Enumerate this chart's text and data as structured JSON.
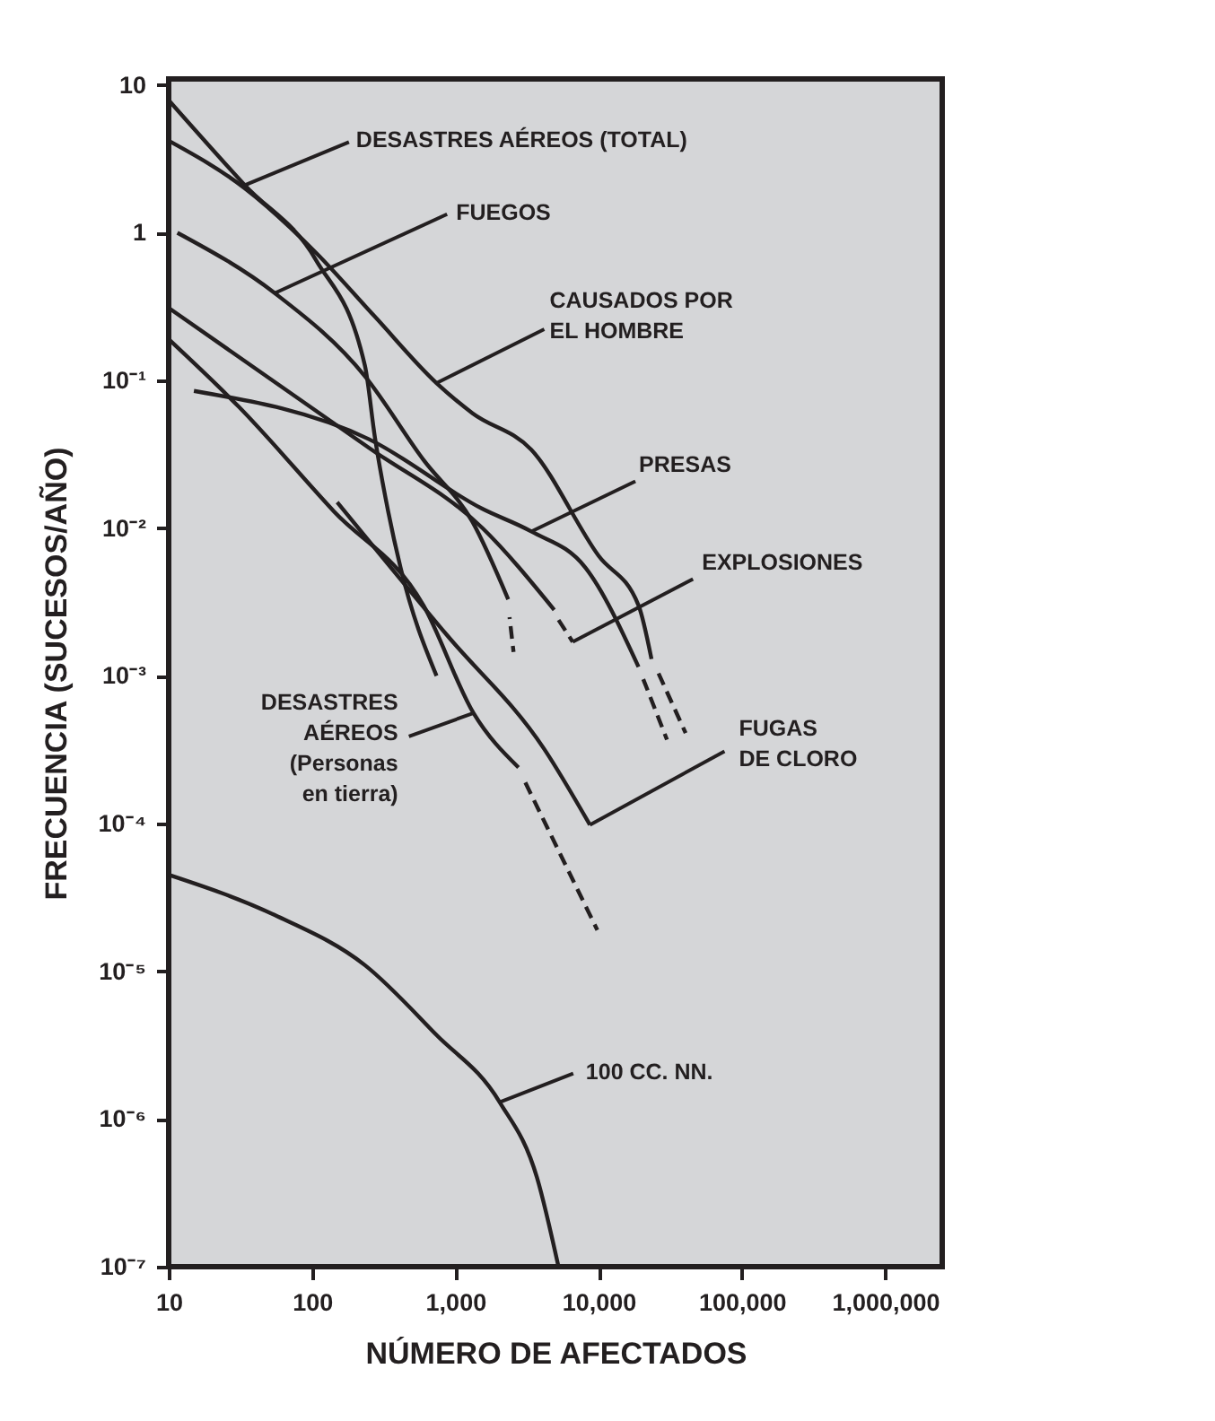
{
  "chart_data": {
    "type": "line",
    "log": "xy",
    "grid": false,
    "xlabel": "NÚMERO DE AFECTADOS",
    "ylabel": "FRECUENCIA (SUCESOS/AÑO)",
    "xlim": [
      10,
      2500000
    ],
    "ylim": [
      1e-07,
      11
    ],
    "xticks": [
      10,
      100,
      {
        "value": 1000,
        "label": "1,000"
      },
      {
        "value": 10000,
        "label": "10,000"
      },
      {
        "value": 100000,
        "label": "100,000"
      },
      {
        "value": 1000000,
        "label": "1,000,000"
      }
    ],
    "yticks": [
      {
        "value": 1e-07,
        "label": "10⁻⁷"
      },
      {
        "value": 1e-06,
        "label": "10⁻⁶"
      },
      {
        "value": 1e-05,
        "label": "10⁻⁵"
      },
      {
        "value": 0.0001,
        "label": "10⁻⁴"
      },
      {
        "value": 0.001,
        "label": "10⁻³"
      },
      {
        "value": 0.01,
        "label": "10⁻²"
      },
      {
        "value": 0.1,
        "label": "10⁻¹"
      },
      1,
      10
    ],
    "series": [
      {
        "color": "#231f20",
        "line_style": "solid",
        "x": [
          10,
          34,
          107,
          234,
          275,
          340,
          415,
          740
        ],
        "values": [
          7.9,
          2.1,
          0.65,
          0.126,
          0.041,
          0.013,
          0.0054,
          0.001
        ]
      },
      {
        "color": "#231f20",
        "line_style": "solid",
        "x": [
          10,
          34,
          107,
          275,
          740,
          1320,
          3390,
          10000,
          19000,
          23400
        ],
        "values": [
          4.2,
          2.0,
          0.73,
          0.27,
          0.096,
          0.06,
          0.034,
          0.0065,
          0.003,
          0.0013
        ]
      },
      {
        "color": "#231f20",
        "line_style": "dashed",
        "x": [
          25500,
          40500
        ],
        "values": [
          0.0011,
          0.00041
        ]
      },
      {
        "color": "#231f20",
        "line_style": "solid",
        "x": [
          15,
          250,
          1550,
          3390,
          8100,
          19000
        ],
        "values": [
          0.085,
          0.04,
          0.0135,
          0.0095,
          0.0054,
          0.00115
        ]
      },
      {
        "color": "#231f20",
        "line_style": "dashed",
        "x": [
          20500,
          30000
        ],
        "values": [
          0.00095,
          0.00037
        ]
      },
      {
        "color": "#231f20",
        "line_style": "solid",
        "x": [
          11.5,
          55,
          234,
          600,
          1320,
          2340
        ],
        "values": [
          1.0,
          0.39,
          0.107,
          0.029,
          0.011,
          0.0033
        ]
      },
      {
        "color": "#231f20",
        "line_style": "dashed",
        "x": [
          2390,
          2550
        ],
        "values": [
          0.0025,
          0.00145
        ]
      },
      {
        "color": "#231f20",
        "line_style": "solid",
        "x": [
          10,
          250,
          1550,
          4900
        ],
        "values": [
          0.31,
          0.035,
          0.01,
          0.0028
        ]
      },
      {
        "color": "#231f20",
        "line_style": "dashed",
        "x": [
          5100,
          6600
        ],
        "values": [
          0.0025,
          0.0017
        ]
      },
      {
        "color": "#231f20",
        "line_style": "solid",
        "x": [
          10,
          31,
          142,
          600,
          1340,
          2760
        ],
        "values": [
          0.19,
          0.066,
          0.013,
          0.003,
          0.00056,
          0.00024
        ]
      },
      {
        "color": "#231f20",
        "line_style": "dashed",
        "x": [
          3000,
          9800
        ],
        "values": [
          0.0002,
          1.9e-05
        ]
      },
      {
        "color": "#231f20",
        "line_style": "solid",
        "x": [
          150,
          870,
          4170,
          8700
        ],
        "values": [
          0.015,
          0.0019,
          0.00032,
          9.8e-05
        ]
      },
      {
        "color": "#231f20",
        "line_style": "solid",
        "x": [
          10,
          55,
          234,
          740,
          2040,
          3720,
          5250
        ],
        "values": [
          4.5e-05,
          2.4e-05,
          1.1e-05,
          3.7e-06,
          1.3e-06,
          4e-07,
          1e-07
        ]
      }
    ],
    "annotations": [
      {
        "text": "DESASTRES AÉREOS (TOTAL)",
        "x": 34,
        "y": 2.1
      },
      {
        "text": "FUEGOS",
        "x": 55,
        "y": 0.39
      },
      {
        "text": "CAUSADOS POR\nEL HOMBRE",
        "x": 740,
        "y": 0.096
      },
      {
        "text": "PRESAS",
        "x": 3390,
        "y": 0.0095
      },
      {
        "text": "EXPLOSIONES",
        "x": 6600,
        "y": 0.0017
      },
      {
        "text": "DESASTRES\nAÉREOS\n(Personas\nen tierra)",
        "x": 1340,
        "y": 0.00056
      },
      {
        "text": "FUGAS\nDE CLORO",
        "x": 8700,
        "y": 9.8e-05
      },
      {
        "text": "100 CC. NN.",
        "x": 2040,
        "y": 1.3e-06
      }
    ]
  }
}
